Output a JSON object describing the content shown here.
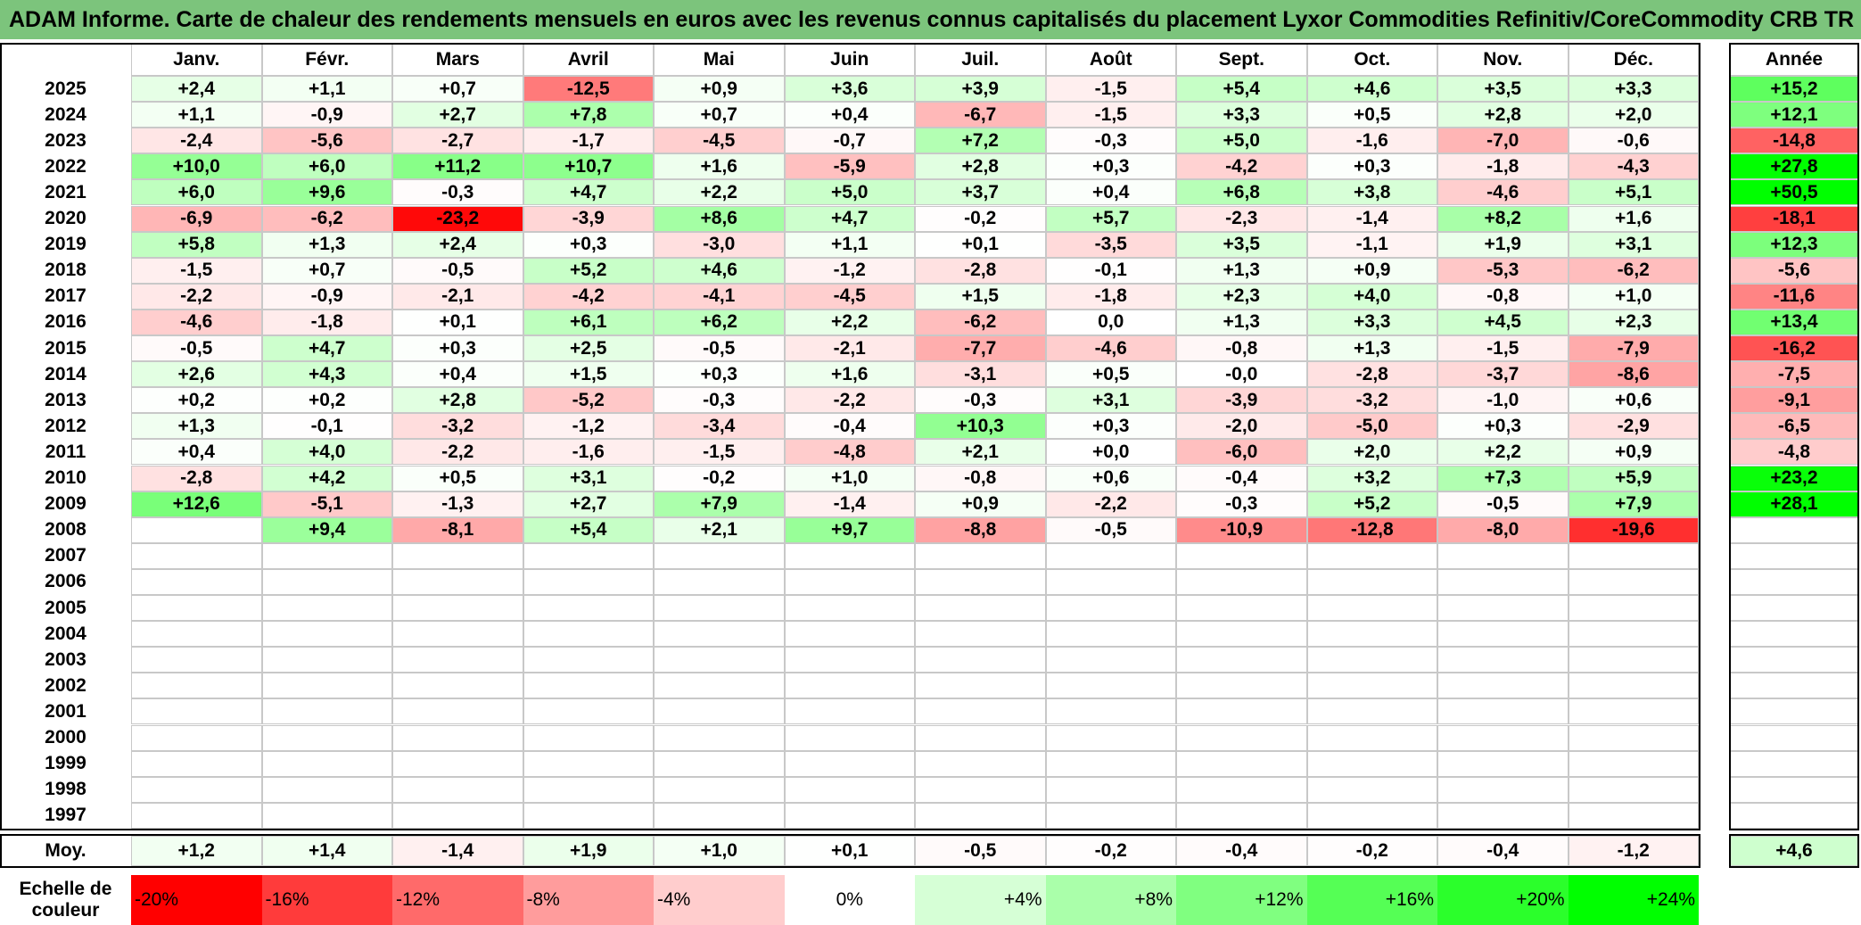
{
  "title": "ADAM Informe. Carte de chaleur des rendements mensuels en euros avec les revenus connus capitalisés du placement Lyxor Commodities Refinitiv/CoreCommodity CRB TR",
  "chart_data": {
    "type": "heatmap",
    "title": "ADAM Informe. Carte de chaleur des rendements mensuels en euros avec les revenus connus capitalisés du placement Lyxor Commodities Refinitiv/CoreCommodity CRB TR",
    "columns": [
      "Janv.",
      "Févr.",
      "Mars",
      "Avril",
      "Mai",
      "Juin",
      "Juil.",
      "Août",
      "Sept.",
      "Oct.",
      "Nov.",
      "Déc."
    ],
    "annual_header": "Année",
    "rows": [
      {
        "year": "2025",
        "values": [
          "+2,4",
          "+1,1",
          "+0,7",
          "-12,5",
          "+0,9",
          "+3,6",
          "+3,9",
          "-1,5",
          "+5,4",
          "+4,6",
          "+3,5",
          "+3,3"
        ],
        "annual": "+15,2"
      },
      {
        "year": "2024",
        "values": [
          "+1,1",
          "-0,9",
          "+2,7",
          "+7,8",
          "+0,7",
          "+0,4",
          "-6,7",
          "-1,5",
          "+3,3",
          "+0,5",
          "+2,8",
          "+2,0"
        ],
        "annual": "+12,1"
      },
      {
        "year": "2023",
        "values": [
          "-2,4",
          "-5,6",
          "-2,7",
          "-1,7",
          "-4,5",
          "-0,7",
          "+7,2",
          "-0,3",
          "+5,0",
          "-1,6",
          "-7,0",
          "-0,6"
        ],
        "annual": "-14,8"
      },
      {
        "year": "2022",
        "values": [
          "+10,0",
          "+6,0",
          "+11,2",
          "+10,7",
          "+1,6",
          "-5,9",
          "+2,8",
          "+0,3",
          "-4,2",
          "+0,3",
          "-1,8",
          "-4,3"
        ],
        "annual": "+27,8"
      },
      {
        "year": "2021",
        "values": [
          "+6,0",
          "+9,6",
          "-0,3",
          "+4,7",
          "+2,2",
          "+5,0",
          "+3,7",
          "+0,4",
          "+6,8",
          "+3,8",
          "-4,6",
          "+5,1"
        ],
        "annual": "+50,5"
      },
      {
        "year": "2020",
        "values": [
          "-6,9",
          "-6,2",
          "-23,2",
          "-3,9",
          "+8,6",
          "+4,7",
          "-0,2",
          "+5,7",
          "-2,3",
          "-1,4",
          "+8,2",
          "+1,6"
        ],
        "annual": "-18,1"
      },
      {
        "year": "2019",
        "values": [
          "+5,8",
          "+1,3",
          "+2,4",
          "+0,3",
          "-3,0",
          "+1,1",
          "+0,1",
          "-3,5",
          "+3,5",
          "-1,1",
          "+1,9",
          "+3,1"
        ],
        "annual": "+12,3"
      },
      {
        "year": "2018",
        "values": [
          "-1,5",
          "+0,7",
          "-0,5",
          "+5,2",
          "+4,6",
          "-1,2",
          "-2,8",
          "-0,1",
          "+1,3",
          "+0,9",
          "-5,3",
          "-6,2"
        ],
        "annual": "-5,6"
      },
      {
        "year": "2017",
        "values": [
          "-2,2",
          "-0,9",
          "-2,1",
          "-4,2",
          "-4,1",
          "-4,5",
          "+1,5",
          "-1,8",
          "+2,3",
          "+4,0",
          "-0,8",
          "+1,0"
        ],
        "annual": "-11,6"
      },
      {
        "year": "2016",
        "values": [
          "-4,6",
          "-1,8",
          "+0,1",
          "+6,1",
          "+6,2",
          "+2,2",
          "-6,2",
          "0,0",
          "+1,3",
          "+3,3",
          "+4,5",
          "+2,3"
        ],
        "annual": "+13,4"
      },
      {
        "year": "2015",
        "values": [
          "-0,5",
          "+4,7",
          "+0,3",
          "+2,5",
          "-0,5",
          "-2,1",
          "-7,7",
          "-4,6",
          "-0,8",
          "+1,3",
          "-1,5",
          "-7,9"
        ],
        "annual": "-16,2"
      },
      {
        "year": "2014",
        "values": [
          "+2,6",
          "+4,3",
          "+0,4",
          "+1,5",
          "+0,3",
          "+1,6",
          "-3,1",
          "+0,5",
          "-0,0",
          "-2,8",
          "-3,7",
          "-8,6"
        ],
        "annual": "-7,5"
      },
      {
        "year": "2013",
        "values": [
          "+0,2",
          "+0,2",
          "+2,8",
          "-5,2",
          "-0,3",
          "-2,2",
          "-0,3",
          "+3,1",
          "-3,9",
          "-3,2",
          "-1,0",
          "+0,6"
        ],
        "annual": "-9,1"
      },
      {
        "year": "2012",
        "values": [
          "+1,3",
          "-0,1",
          "-3,2",
          "-1,2",
          "-3,4",
          "-0,4",
          "+10,3",
          "+0,3",
          "-2,0",
          "-5,0",
          "+0,3",
          "-2,9"
        ],
        "annual": "-6,5"
      },
      {
        "year": "2011",
        "values": [
          "+0,4",
          "+4,0",
          "-2,2",
          "-1,6",
          "-1,5",
          "-4,8",
          "+2,1",
          "+0,0",
          "-6,0",
          "+2,0",
          "+2,2",
          "+0,9"
        ],
        "annual": "-4,8"
      },
      {
        "year": "2010",
        "values": [
          "-2,8",
          "+4,2",
          "+0,5",
          "+3,1",
          "-0,2",
          "+1,0",
          "-0,8",
          "+0,6",
          "-0,4",
          "+3,2",
          "+7,3",
          "+5,9"
        ],
        "annual": "+23,2"
      },
      {
        "year": "2009",
        "values": [
          "+12,6",
          "-5,1",
          "-1,3",
          "+2,7",
          "+7,9",
          "-1,4",
          "+0,9",
          "-2,2",
          "-0,3",
          "+5,2",
          "-0,5",
          "+7,9"
        ],
        "annual": "+28,1"
      },
      {
        "year": "2008",
        "values": [
          "",
          "+9,4",
          "-8,1",
          "+5,4",
          "+2,1",
          "+9,7",
          "-8,8",
          "-0,5",
          "-10,9",
          "-12,8",
          "-8,0",
          "-19,6"
        ],
        "annual": ""
      },
      {
        "year": "2007",
        "values": [
          "",
          "",
          "",
          "",
          "",
          "",
          "",
          "",
          "",
          "",
          "",
          ""
        ],
        "annual": ""
      },
      {
        "year": "2006",
        "values": [
          "",
          "",
          "",
          "",
          "",
          "",
          "",
          "",
          "",
          "",
          "",
          ""
        ],
        "annual": ""
      },
      {
        "year": "2005",
        "values": [
          "",
          "",
          "",
          "",
          "",
          "",
          "",
          "",
          "",
          "",
          "",
          ""
        ],
        "annual": ""
      },
      {
        "year": "2004",
        "values": [
          "",
          "",
          "",
          "",
          "",
          "",
          "",
          "",
          "",
          "",
          "",
          ""
        ],
        "annual": ""
      },
      {
        "year": "2003",
        "values": [
          "",
          "",
          "",
          "",
          "",
          "",
          "",
          "",
          "",
          "",
          "",
          ""
        ],
        "annual": ""
      },
      {
        "year": "2002",
        "values": [
          "",
          "",
          "",
          "",
          "",
          "",
          "",
          "",
          "",
          "",
          "",
          ""
        ],
        "annual": ""
      },
      {
        "year": "2001",
        "values": [
          "",
          "",
          "",
          "",
          "",
          "",
          "",
          "",
          "",
          "",
          "",
          ""
        ],
        "annual": ""
      },
      {
        "year": "2000",
        "values": [
          "",
          "",
          "",
          "",
          "",
          "",
          "",
          "",
          "",
          "",
          "",
          ""
        ],
        "annual": ""
      },
      {
        "year": "1999",
        "values": [
          "",
          "",
          "",
          "",
          "",
          "",
          "",
          "",
          "",
          "",
          "",
          ""
        ],
        "annual": ""
      },
      {
        "year": "1998",
        "values": [
          "",
          "",
          "",
          "",
          "",
          "",
          "",
          "",
          "",
          "",
          "",
          ""
        ],
        "annual": ""
      },
      {
        "year": "1997",
        "values": [
          "",
          "",
          "",
          "",
          "",
          "",
          "",
          "",
          "",
          "",
          "",
          ""
        ],
        "annual": ""
      }
    ],
    "average": {
      "label": "Moy.",
      "values": [
        "+1,2",
        "+1,4",
        "-1,4",
        "+1,9",
        "+1,0",
        "+0,1",
        "-0,5",
        "-0,2",
        "-0,4",
        "-0,2",
        "-0,4",
        "-1,2"
      ],
      "annual": "+4,6"
    },
    "color_scale": {
      "label": "Echelle de couleur",
      "stops": [
        {
          "label": "-20%",
          "value": -20,
          "color": "#ff0000"
        },
        {
          "label": "-16%",
          "value": -16,
          "color": "#ff3b3b"
        },
        {
          "label": "-12%",
          "value": -12,
          "color": "#ff6a6a"
        },
        {
          "label": "-8%",
          "value": -8,
          "color": "#ff9c9c"
        },
        {
          "label": "-4%",
          "value": -4,
          "color": "#ffcdcd"
        },
        {
          "label": "0%",
          "value": 0,
          "color": "#ffffff"
        },
        {
          "label": "+4%",
          "value": 4,
          "color": "#d6ffd6"
        },
        {
          "label": "+8%",
          "value": 8,
          "color": "#aaffaa"
        },
        {
          "label": "+12%",
          "value": 12,
          "color": "#80ff80"
        },
        {
          "label": "+16%",
          "value": 16,
          "color": "#55ff55"
        },
        {
          "label": "+20%",
          "value": 20,
          "color": "#2bff2b"
        },
        {
          "label": "+24%",
          "value": 24,
          "color": "#00ff00"
        }
      ]
    }
  },
  "colors": {
    "title_bg": "#7cc47c",
    "negative_max": "#ff0000",
    "positive_max": "#00ff00",
    "neutral": "#ffffff"
  }
}
